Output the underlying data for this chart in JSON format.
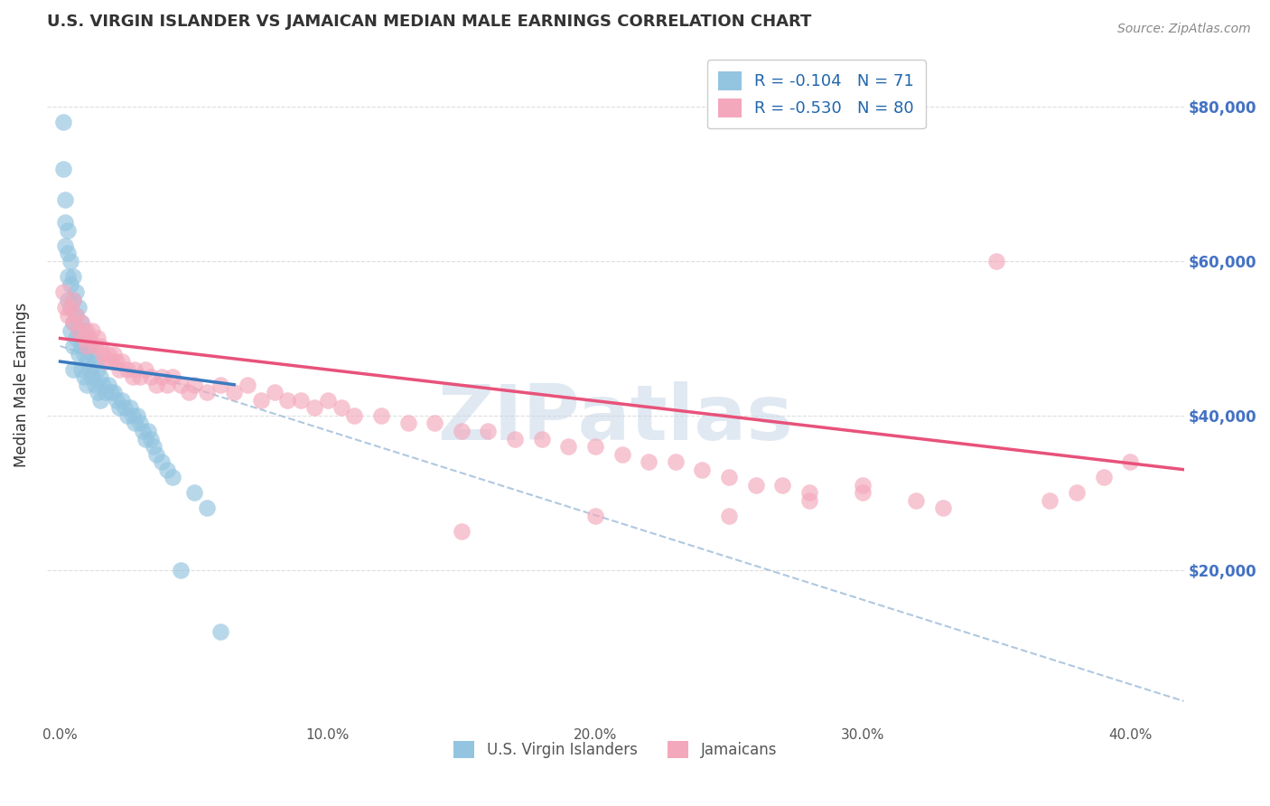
{
  "title": "U.S. VIRGIN ISLANDER VS JAMAICAN MEDIAN MALE EARNINGS CORRELATION CHART",
  "source": "Source: ZipAtlas.com",
  "ylabel": "Median Male Earnings",
  "xlabel_ticks": [
    "0.0%",
    "10.0%",
    "20.0%",
    "30.0%",
    "40.0%"
  ],
  "xlabel_vals": [
    0.0,
    0.1,
    0.2,
    0.3,
    0.4
  ],
  "ytick_labels": [
    "$20,000",
    "$40,000",
    "$60,000",
    "$80,000"
  ],
  "ytick_vals": [
    20000,
    40000,
    60000,
    80000
  ],
  "xlim": [
    -0.005,
    0.42
  ],
  "ylim": [
    0,
    88000
  ],
  "blue_color": "#93c4e0",
  "pink_color": "#f4a8bc",
  "blue_line_color": "#3a7abf",
  "pink_line_color": "#e8527a",
  "dashed_line_color": "#b0c8e0",
  "R_blue": -0.104,
  "N_blue": 71,
  "R_pink": -0.53,
  "N_pink": 80,
  "watermark": "ZIPatlas",
  "title_color": "#333333",
  "legend_label_blue": "U.S. Virgin Islanders",
  "legend_label_pink": "Jamaicans",
  "blue_scatter_x": [
    0.001,
    0.001,
    0.002,
    0.002,
    0.002,
    0.003,
    0.003,
    0.003,
    0.003,
    0.004,
    0.004,
    0.004,
    0.004,
    0.005,
    0.005,
    0.005,
    0.005,
    0.005,
    0.006,
    0.006,
    0.006,
    0.007,
    0.007,
    0.007,
    0.008,
    0.008,
    0.008,
    0.009,
    0.009,
    0.009,
    0.01,
    0.01,
    0.01,
    0.011,
    0.011,
    0.012,
    0.012,
    0.013,
    0.013,
    0.014,
    0.014,
    0.015,
    0.015,
    0.016,
    0.017,
    0.018,
    0.019,
    0.02,
    0.021,
    0.022,
    0.023,
    0.024,
    0.025,
    0.026,
    0.027,
    0.028,
    0.029,
    0.03,
    0.031,
    0.032,
    0.033,
    0.034,
    0.035,
    0.036,
    0.038,
    0.04,
    0.042,
    0.045,
    0.05,
    0.055,
    0.06
  ],
  "blue_scatter_y": [
    78000,
    72000,
    68000,
    65000,
    62000,
    64000,
    61000,
    58000,
    55000,
    60000,
    57000,
    54000,
    51000,
    58000,
    55000,
    52000,
    49000,
    46000,
    56000,
    53000,
    50000,
    54000,
    51000,
    48000,
    52000,
    49000,
    46000,
    51000,
    48000,
    45000,
    50000,
    47000,
    44000,
    49000,
    46000,
    48000,
    45000,
    47000,
    44000,
    46000,
    43000,
    45000,
    42000,
    44000,
    43000,
    44000,
    43000,
    43000,
    42000,
    41000,
    42000,
    41000,
    40000,
    41000,
    40000,
    39000,
    40000,
    39000,
    38000,
    37000,
    38000,
    37000,
    36000,
    35000,
    34000,
    33000,
    32000,
    20000,
    30000,
    28000,
    12000
  ],
  "pink_scatter_x": [
    0.001,
    0.002,
    0.003,
    0.004,
    0.005,
    0.005,
    0.006,
    0.007,
    0.008,
    0.009,
    0.01,
    0.01,
    0.011,
    0.012,
    0.013,
    0.014,
    0.015,
    0.016,
    0.017,
    0.018,
    0.019,
    0.02,
    0.021,
    0.022,
    0.023,
    0.025,
    0.027,
    0.028,
    0.03,
    0.032,
    0.034,
    0.036,
    0.038,
    0.04,
    0.042,
    0.045,
    0.048,
    0.05,
    0.055,
    0.06,
    0.065,
    0.07,
    0.075,
    0.08,
    0.085,
    0.09,
    0.095,
    0.1,
    0.105,
    0.11,
    0.12,
    0.13,
    0.14,
    0.15,
    0.16,
    0.17,
    0.18,
    0.19,
    0.2,
    0.21,
    0.22,
    0.23,
    0.24,
    0.25,
    0.26,
    0.27,
    0.28,
    0.3,
    0.32,
    0.33,
    0.35,
    0.37,
    0.38,
    0.39,
    0.4,
    0.28,
    0.3,
    0.25,
    0.2,
    0.15
  ],
  "pink_scatter_y": [
    56000,
    54000,
    53000,
    54000,
    52000,
    55000,
    53000,
    51000,
    52000,
    50000,
    51000,
    49000,
    50000,
    51000,
    49000,
    50000,
    49000,
    48000,
    47000,
    48000,
    47000,
    48000,
    47000,
    46000,
    47000,
    46000,
    45000,
    46000,
    45000,
    46000,
    45000,
    44000,
    45000,
    44000,
    45000,
    44000,
    43000,
    44000,
    43000,
    44000,
    43000,
    44000,
    42000,
    43000,
    42000,
    42000,
    41000,
    42000,
    41000,
    40000,
    40000,
    39000,
    39000,
    38000,
    38000,
    37000,
    37000,
    36000,
    36000,
    35000,
    34000,
    34000,
    33000,
    32000,
    31000,
    31000,
    30000,
    30000,
    29000,
    28000,
    60000,
    29000,
    30000,
    32000,
    34000,
    29000,
    31000,
    27000,
    27000,
    25000
  ],
  "blue_trend_x": [
    0.0,
    0.065
  ],
  "blue_trend_y": [
    47000,
    44000
  ],
  "pink_trend_x": [
    0.0,
    0.42
  ],
  "pink_trend_y": [
    50000,
    33000
  ],
  "dash_trend_x": [
    0.0,
    0.42
  ],
  "dash_trend_y": [
    49000,
    3000
  ]
}
